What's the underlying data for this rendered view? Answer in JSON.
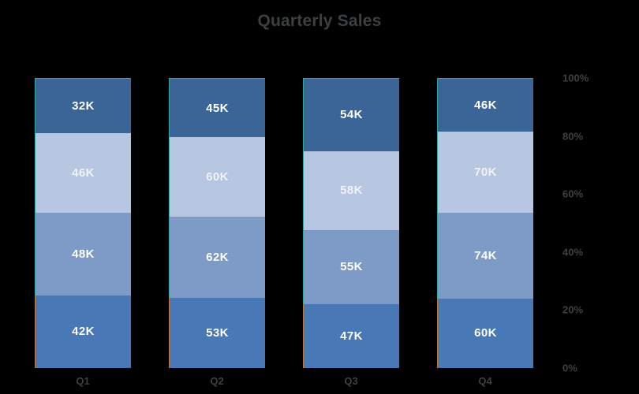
{
  "title": "Quarterly Sales",
  "chart_data": {
    "type": "bar",
    "variant": "100-percent-stacked-column",
    "title": "Quarterly Sales",
    "categories": [
      "Q1",
      "Q2",
      "Q3",
      "Q4"
    ],
    "series": [
      {
        "name": "top-segment",
        "color": "#3A6596",
        "label_color": "#FFFFFF",
        "values": [
          32,
          45,
          54,
          46
        ],
        "labels": [
          "32K",
          "45K",
          "54K",
          "46K"
        ]
      },
      {
        "name": "upper-middle-segment",
        "color": "#B7C6E1",
        "label_color": "#F1F3F8",
        "values": [
          46,
          60,
          58,
          70
        ],
        "labels": [
          "46K",
          "60K",
          "58K",
          "70K"
        ]
      },
      {
        "name": "lower-middle-segment",
        "color": "#7E9AC7",
        "label_color": "#FFFFFF",
        "values": [
          48,
          62,
          55,
          74
        ],
        "labels": [
          "48K",
          "62K",
          "55K",
          "74K"
        ]
      },
      {
        "name": "bottom-segment",
        "color": "#4878B5",
        "label_color": "#FFFFFF",
        "values": [
          42,
          53,
          47,
          60
        ],
        "labels": [
          "42K",
          "53K",
          "47K",
          "60K"
        ]
      }
    ],
    "stack_order": "first series rendered at top of each column",
    "value_suffix": "K",
    "data_label_position": "inside-center",
    "y_axis": {
      "side": "right",
      "range_percent": [
        0,
        100
      ],
      "ticks": [
        "0%",
        "20%",
        "40%",
        "60%",
        "80%",
        "100%"
      ]
    },
    "x_axis": {
      "side": "bottom"
    },
    "legend": "none",
    "grid": "off",
    "colors": {
      "background": "#000000",
      "text": "#3C4043",
      "bar_edge_teal": "#2BA8A4",
      "bar_edge_orange": "#BF7B30"
    }
  }
}
